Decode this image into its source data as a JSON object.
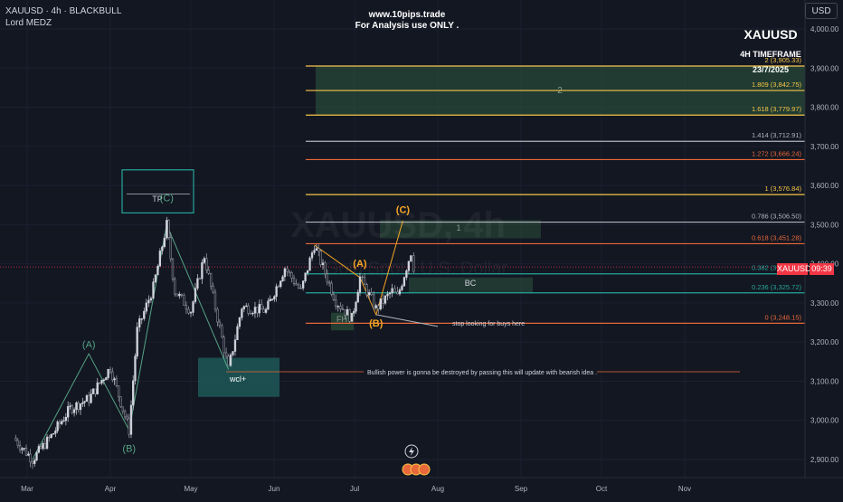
{
  "header": {
    "symbol_line": "XAUUSD · 4h · BLACKBULL",
    "author": "Lord MEDZ",
    "site": "www.10pips.trade",
    "disclaimer": "For Analysis use ONLY .",
    "currency": "USD"
  },
  "overlay_text": {
    "instrument": "XAUUSD",
    "timeframe": "4H TIMEFRAME",
    "date": "23/7/2025",
    "watermark_symbol": "XAUUSD, 4h",
    "watermark_name": "Gold Spot / U.S. Dollar"
  },
  "price_tags": {
    "symbol": "XAUUSD",
    "time": "09:39"
  },
  "colors": {
    "background": "#131722",
    "candle_up": "#d1d4dc",
    "fib_gold": "#f7c548",
    "fib_orange": "#e8683a",
    "fib_gray": "#b2b5be",
    "fib_teal": "#26a69a",
    "wave_green": "#56a384",
    "wave_orange": "#f5a623",
    "price_tag": "#f23645"
  },
  "chart_data": {
    "type": "candlestick",
    "x_axis": {
      "tick_labels": [
        "Mar",
        "Apr",
        "May",
        "Jun",
        "Jul",
        "Aug",
        "Sep",
        "Oct",
        "Nov"
      ]
    },
    "y_axis": {
      "range": [
        2850,
        4050
      ],
      "tick_labels": [
        "4,000.00",
        "3,900.00",
        "3,800.00",
        "3,700.00",
        "3,600.00",
        "3,500.00",
        "3,400.00",
        "3,300.00",
        "3,200.00",
        "3,100.00",
        "3,000.00",
        "2,900.00"
      ]
    },
    "price_path": [
      {
        "date": "2025-02-24",
        "price": 2955
      },
      {
        "date": "2025-03-03",
        "price": 2900
      },
      {
        "date": "2025-03-10",
        "price": 2960
      },
      {
        "date": "2025-03-17",
        "price": 3030
      },
      {
        "date": "2025-03-24",
        "price": 3055
      },
      {
        "date": "2025-04-01",
        "price": 3135
      },
      {
        "date": "2025-04-08",
        "price": 2975
      },
      {
        "date": "2025-04-11",
        "price": 3230
      },
      {
        "date": "2025-04-17",
        "price": 3340
      },
      {
        "date": "2025-04-22",
        "price": 3500
      },
      {
        "date": "2025-04-25",
        "price": 3330
      },
      {
        "date": "2025-05-01",
        "price": 3280
      },
      {
        "date": "2025-05-06",
        "price": 3420
      },
      {
        "date": "2025-05-15",
        "price": 3130
      },
      {
        "date": "2025-05-20",
        "price": 3290
      },
      {
        "date": "2025-05-29",
        "price": 3280
      },
      {
        "date": "2025-06-05",
        "price": 3390
      },
      {
        "date": "2025-06-11",
        "price": 3330
      },
      {
        "date": "2025-06-16",
        "price": 3448
      },
      {
        "date": "2025-06-24",
        "price": 3305
      },
      {
        "date": "2025-06-30",
        "price": 3260
      },
      {
        "date": "2025-07-03",
        "price": 3365
      },
      {
        "date": "2025-07-09",
        "price": 3285
      },
      {
        "date": "2025-07-15",
        "price": 3330
      },
      {
        "date": "2025-07-17",
        "price": 3315
      },
      {
        "date": "2025-07-22",
        "price": 3430
      },
      {
        "date": "2025-07-23",
        "price": 3392
      }
    ],
    "current_price_label": "XAUUSD",
    "fib_levels": [
      {
        "label": "2 (3,905.33)",
        "price": 3905.33,
        "color": "#f7c548"
      },
      {
        "label": "1.809 (3,842.75)",
        "price": 3842.75,
        "color": "#f7c548"
      },
      {
        "label": "1.618 (3,779.97)",
        "price": 3779.97,
        "color": "#f7c548"
      },
      {
        "label": "1.414 (3,712.91)",
        "price": 3712.91,
        "color": "#b2b5be"
      },
      {
        "label": "1.272 (3,666.24)",
        "price": 3666.24,
        "color": "#e8683a"
      },
      {
        "label": "1 (3,576.84)",
        "price": 3576.84,
        "color": "#f7c548"
      },
      {
        "label": "0.786 (3,506.50)",
        "price": 3506.5,
        "color": "#b2b5be"
      },
      {
        "label": "0.618 (3,451.28)",
        "price": 3451.28,
        "color": "#e8683a"
      },
      {
        "label": "0.382 (3,374.37)",
        "price": 3374.37,
        "color": "#26a69a"
      },
      {
        "label": "0.236 (3,325.72)",
        "price": 3325.72,
        "color": "#26a69a"
      },
      {
        "label": "0 (3,248.15)",
        "price": 3248.15,
        "color": "#e8683a"
      }
    ],
    "wave_labels": [
      {
        "text": "(A)",
        "date": "2025-03-24",
        "price": 3185,
        "color": "#56a384"
      },
      {
        "text": "(B)",
        "date": "2025-04-08",
        "price": 2920,
        "color": "#56a384"
      },
      {
        "text": "(C)",
        "date": "2025-04-22",
        "price": 3560,
        "color": "#56a384"
      },
      {
        "text": "(A)",
        "date": "2025-07-03",
        "price": 3392,
        "color": "#f5a623"
      },
      {
        "text": "(B)",
        "date": "2025-07-09",
        "price": 3240,
        "color": "#f5a623"
      },
      {
        "text": "(C)",
        "date": "2025-07-19",
        "price": 3530,
        "color": "#f5a623"
      }
    ],
    "zone_labels": {
      "tp": "TP",
      "wcl": "wcl+",
      "fh": "FH",
      "bc": "BC",
      "one": "1",
      "two": "2"
    },
    "annotations": {
      "stop": "stop looking for buys here",
      "bullish": "Bullish power is gonna be destroyed by passing this will update with bearish idea ."
    }
  }
}
